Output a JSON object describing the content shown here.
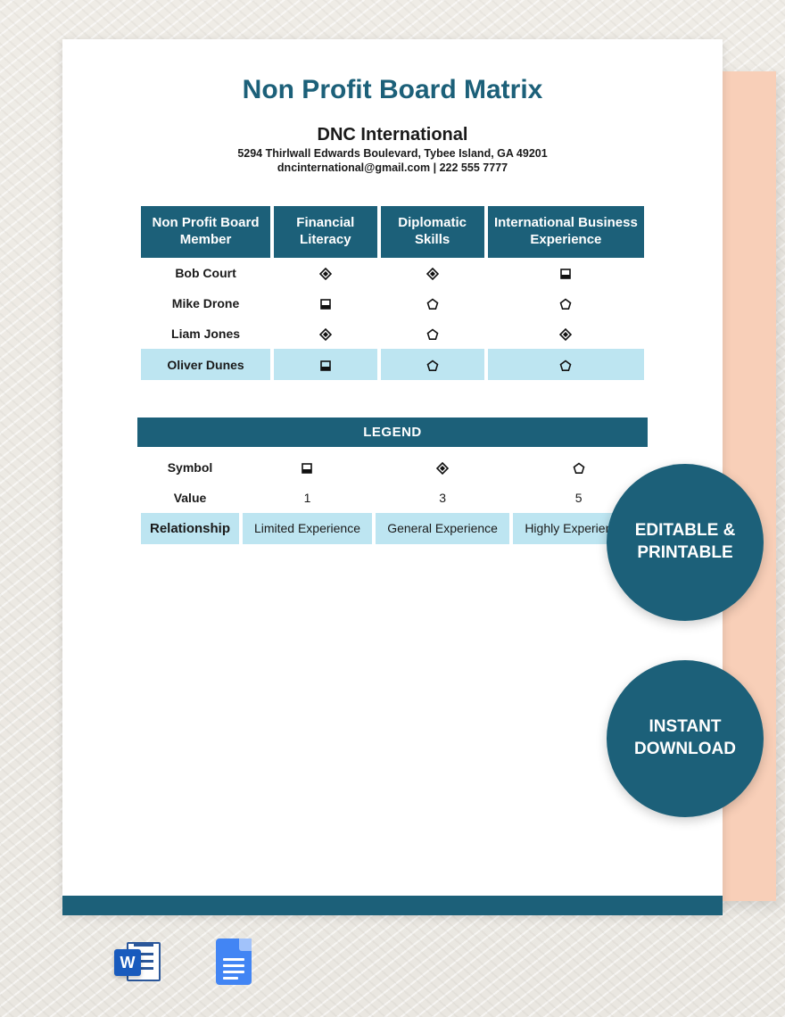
{
  "colors": {
    "teal": "#1c6079",
    "highlight": "#bde5f1",
    "peach": "#f8cfb8",
    "page_bg": "#ffffff"
  },
  "document": {
    "title": "Non Profit Board Matrix",
    "org_name": "DNC International",
    "address": "5294 Thirlwall Edwards Boulevard, Tybee Island, GA 49201",
    "contact": "dncinternational@gmail.com | 222 555 7777"
  },
  "matrix": {
    "headers": [
      "Non Profit Board Member",
      "Financial Literacy",
      "Diplomatic Skills",
      "International Business Experience"
    ],
    "rows": [
      {
        "name": "Bob Court",
        "cells": [
          "diamond",
          "diamond",
          "square"
        ],
        "highlight": false
      },
      {
        "name": "Mike Drone",
        "cells": [
          "square",
          "pentagon",
          "pentagon"
        ],
        "highlight": false
      },
      {
        "name": "Liam Jones",
        "cells": [
          "diamond",
          "pentagon",
          "diamond"
        ],
        "highlight": false
      },
      {
        "name": "Oliver Dunes",
        "cells": [
          "square",
          "pentagon",
          "pentagon"
        ],
        "highlight": true
      }
    ]
  },
  "legend": {
    "title": "LEGEND",
    "labels": {
      "symbol": "Symbol",
      "value": "Value",
      "relationship": "Relationship"
    },
    "entries": [
      {
        "symbol": "square",
        "value": "1",
        "relationship": "Limited Experience"
      },
      {
        "symbol": "diamond",
        "value": "3",
        "relationship": "General Experience"
      },
      {
        "symbol": "pentagon",
        "value": "5",
        "relationship": "Highly Experienced"
      }
    ]
  },
  "badges": {
    "editable": "EDITABLE & PRINTABLE",
    "download": "INSTANT DOWNLOAD"
  },
  "icons": {
    "word_letter": "W",
    "square": "square-icon",
    "diamond": "diamond-icon",
    "pentagon": "pentagon-icon"
  }
}
